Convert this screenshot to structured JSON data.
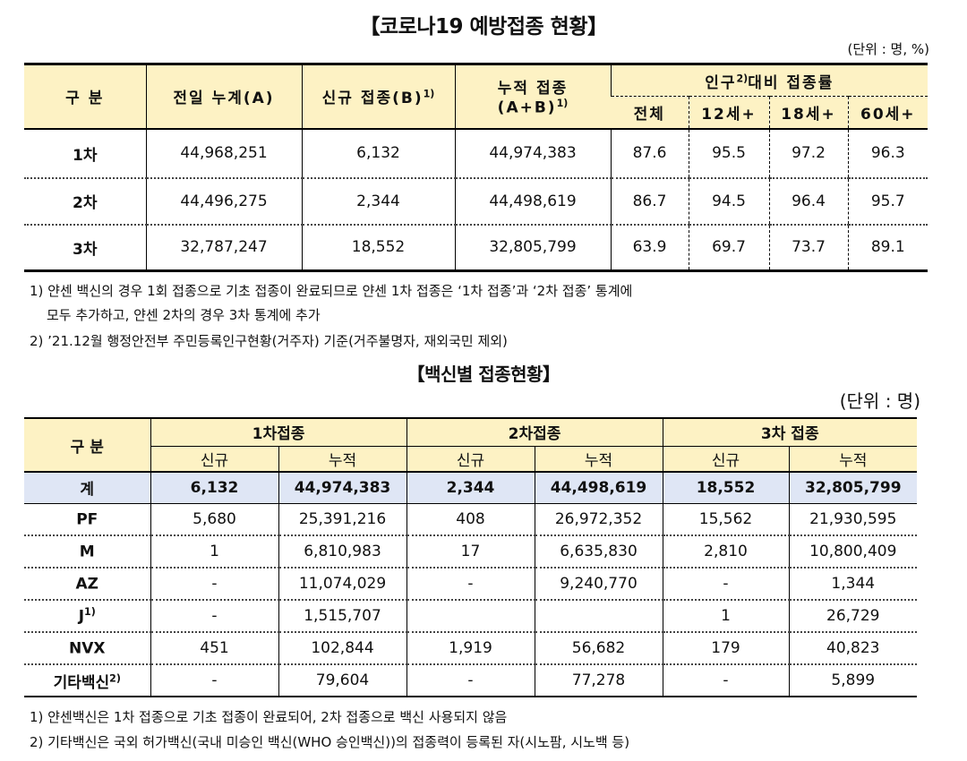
{
  "section1": {
    "title": "【코로나19 예방접종 현황】",
    "unit": "(단위 : 명, %)",
    "headers": {
      "category": "구 분",
      "prev_total": "전일 누계(A)",
      "new": "신규 접종(B)",
      "new_sup": "1)",
      "cumulative_line1": "누적 접종",
      "cumulative_line2": "(A+B)",
      "cumulative_sup": "1)",
      "rate_pre": "인구",
      "rate_sup": "2)",
      "rate_post": "대비 접종률",
      "sub_all": "전체",
      "sub_12": "12세+",
      "sub_18": "18세+",
      "sub_60": "60세+"
    },
    "rows": [
      {
        "label": "1차",
        "prev": "44,968,251",
        "new": "6,132",
        "cum": "44,974,383",
        "all": "87.6",
        "a12": "95.5",
        "a18": "97.2",
        "a60": "96.3"
      },
      {
        "label": "2차",
        "prev": "44,496,275",
        "new": "2,344",
        "cum": "44,498,619",
        "all": "86.7",
        "a12": "94.5",
        "a18": "96.4",
        "a60": "95.7"
      },
      {
        "label": "3차",
        "prev": "32,787,247",
        "new": "18,552",
        "cum": "32,805,799",
        "all": "63.9",
        "a12": "69.7",
        "a18": "73.7",
        "a60": "89.1"
      }
    ],
    "notes": {
      "n1": "1) 얀센 백신의 경우 1회 접종으로 기초 접종이 완료되므로 얀센 1차 접종은 ‘1차 접종’과 ‘2차 접종’ 통계에",
      "n1b": "모두 추가하고, 얀센 2차의 경우 3차 통계에 추가",
      "n2": "2) ’21.12월 행정안전부 주민등록인구현황(거주자) 기준(거주불명자, 재외국민 제외)"
    }
  },
  "section2": {
    "title": "【백신별 접종현황】",
    "unit": "(단위 : 명)",
    "headers": {
      "category": "구 분",
      "dose1": "1차접종",
      "dose2": "2차접종",
      "dose3": "3차 접종",
      "new": "신규",
      "cum": "누적"
    },
    "total": {
      "label": "계",
      "d1n": "6,132",
      "d1c": "44,974,383",
      "d2n": "2,344",
      "d2c": "44,498,619",
      "d3n": "18,552",
      "d3c": "32,805,799"
    },
    "rows": [
      {
        "label": "PF",
        "sup": "",
        "d1n": "5,680",
        "d1c": "25,391,216",
        "d2n": "408",
        "d2c": "26,972,352",
        "d3n": "15,562",
        "d3c": "21,930,595"
      },
      {
        "label": "M",
        "sup": "",
        "d1n": "1",
        "d1c": "6,810,983",
        "d2n": "17",
        "d2c": "6,635,830",
        "d3n": "2,810",
        "d3c": "10,800,409"
      },
      {
        "label": "AZ",
        "sup": "",
        "d1n": "-",
        "d1c": "11,074,029",
        "d2n": "-",
        "d2c": "9,240,770",
        "d3n": "-",
        "d3c": "1,344"
      },
      {
        "label": "J",
        "sup": "1)",
        "d1n": "-",
        "d1c": "1,515,707",
        "d2n": "",
        "d2c": "",
        "d3n": "1",
        "d3c": "26,729"
      },
      {
        "label": "NVX",
        "sup": "",
        "d1n": "451",
        "d1c": "102,844",
        "d2n": "1,919",
        "d2c": "56,682",
        "d3n": "179",
        "d3c": "40,823"
      },
      {
        "label": "기타백신",
        "sup": "2)",
        "d1n": "-",
        "d1c": "79,604",
        "d2n": "-",
        "d2c": "77,278",
        "d3n": "-",
        "d3c": "5,899"
      }
    ],
    "notes": {
      "n1": "1) 얀센백신은 1차 접종으로 기초 접종이 완료되어, 2차 접종으로 백신 사용되지 않음",
      "n2": "2) 기타백신은 국외 허가백신(국내 미승인 백신(WHO 승인백신))의 접종력이 등록된 자(시노팜, 시노백 등)"
    }
  }
}
